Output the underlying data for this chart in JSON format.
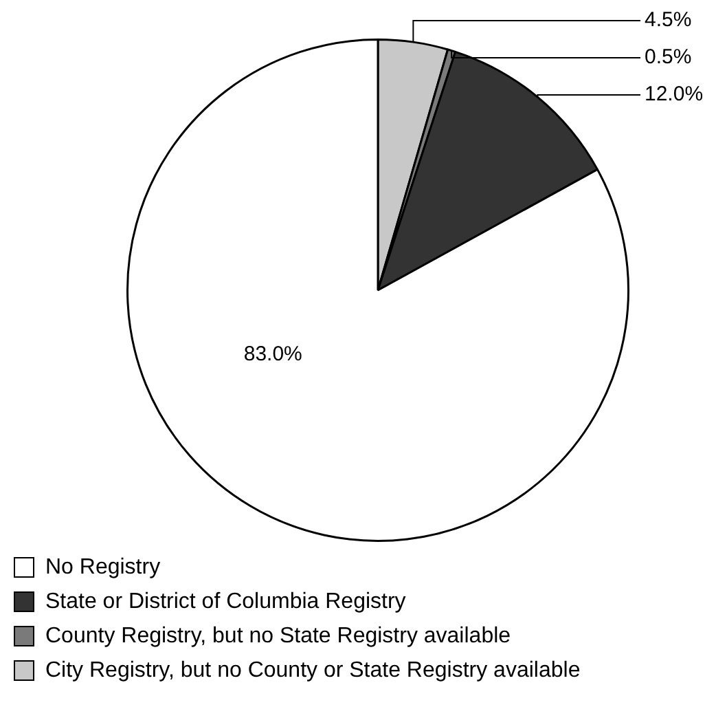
{
  "chart_data": {
    "type": "pie",
    "categories": [
      "No Registry",
      "State or District of Columbia Registry",
      "County Registry, but no State Registry available",
      "City Registry, but no County or State Registry available"
    ],
    "values": [
      83.0,
      12.0,
      0.5,
      4.5
    ],
    "colors": [
      "#ffffff",
      "#333333",
      "#7a7a7a",
      "#c8c8c8"
    ],
    "value_labels": [
      "83.0%",
      "12.0%",
      "0.5%",
      "4.5%"
    ],
    "legend": "bottom left"
  }
}
